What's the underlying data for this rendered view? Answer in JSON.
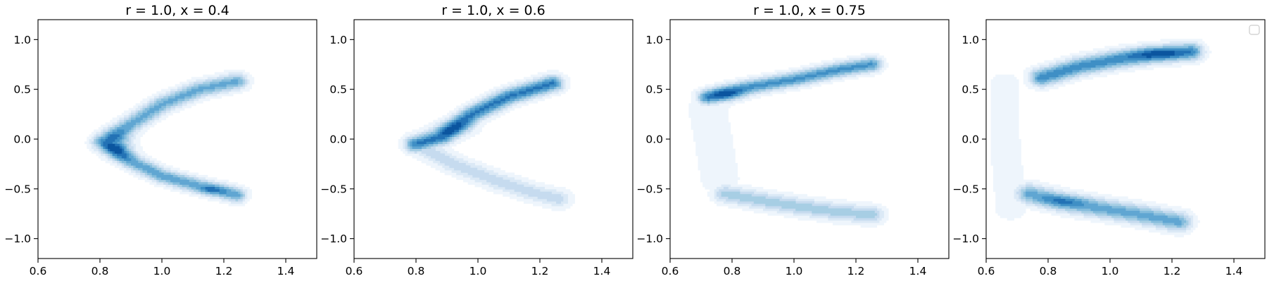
{
  "chart_data": [
    {
      "type": "contour",
      "title": "r = 1.0, x = 0.4",
      "xlim": [
        0.6,
        1.5
      ],
      "ylim": [
        -1.2,
        1.2
      ],
      "x_ticks": [
        "0.6",
        "0.8",
        "1.0",
        "1.2",
        "1.4"
      ],
      "y_ticks": [
        "1.0",
        "0.5",
        "0.0",
        "−0.5",
        "−1.0"
      ],
      "colormap": "Blues",
      "legend": false,
      "arms": [
        {
          "path": [
            [
              0.81,
              -0.03
            ],
            [
              0.9,
              0.15
            ],
            [
              1.0,
              0.35
            ],
            [
              1.12,
              0.5
            ],
            [
              1.24,
              0.58
            ]
          ],
          "sy": 0.055,
          "w": 0.85
        },
        {
          "path": [
            [
              0.81,
              -0.03
            ],
            [
              0.9,
              -0.22
            ],
            [
              1.0,
              -0.37
            ],
            [
              1.12,
              -0.47
            ],
            [
              1.24,
              -0.56
            ]
          ],
          "sy": 0.05,
          "w": 0.9
        }
      ],
      "peaks": [
        {
          "x": 0.86,
          "y": -0.06,
          "sx": 0.035,
          "sy": 0.09,
          "w": 0.6
        },
        {
          "x": 1.16,
          "y": -0.51,
          "sx": 0.03,
          "sy": 0.03,
          "w": 0.3
        }
      ]
    },
    {
      "type": "contour",
      "title": "r = 1.0, x = 0.6",
      "xlim": [
        0.6,
        1.5
      ],
      "ylim": [
        -1.2,
        1.2
      ],
      "x_ticks": [
        "0.6",
        "0.8",
        "1.0",
        "1.2",
        "1.4"
      ],
      "y_ticks": [
        "1.0",
        "0.5",
        "0.0",
        "−0.5",
        "−1.0"
      ],
      "colormap": "Blues",
      "legend": false,
      "arms": [
        {
          "path": [
            [
              0.8,
              -0.05
            ],
            [
              0.88,
              0.02
            ],
            [
              0.98,
              0.25
            ],
            [
              1.1,
              0.43
            ],
            [
              1.24,
              0.56
            ]
          ],
          "sy": 0.055,
          "w": 1.0
        },
        {
          "path": [
            [
              0.8,
              -0.05
            ],
            [
              0.92,
              -0.25
            ],
            [
              1.06,
              -0.42
            ],
            [
              1.18,
              -0.54
            ],
            [
              1.26,
              -0.6
            ]
          ],
          "sy": 0.06,
          "w": 0.4
        }
      ],
      "peaks": [
        {
          "x": 0.92,
          "y": 0.1,
          "sx": 0.05,
          "sy": 0.06,
          "w": 0.25
        }
      ]
    },
    {
      "type": "contour",
      "title": "r = 1.0, x = 0.75",
      "xlim": [
        0.6,
        1.5
      ],
      "ylim": [
        -1.2,
        1.2
      ],
      "x_ticks": [
        "0.6",
        "0.8",
        "1.0",
        "1.2",
        "1.4"
      ],
      "y_ticks": [
        "1.0",
        "0.5",
        "0.0",
        "−0.5",
        "−1.0"
      ],
      "colormap": "Blues",
      "legend": false,
      "arms": [
        {
          "path": [
            [
              0.72,
              0.42
            ],
            [
              0.85,
              0.52
            ],
            [
              1.0,
              0.6
            ],
            [
              1.15,
              0.7
            ],
            [
              1.25,
              0.75
            ]
          ],
          "sy": 0.05,
          "w": 0.9
        },
        {
          "path": [
            [
              0.78,
              -0.55
            ],
            [
              0.9,
              -0.62
            ],
            [
              1.02,
              -0.68
            ],
            [
              1.14,
              -0.73
            ],
            [
              1.25,
              -0.76
            ]
          ],
          "sy": 0.06,
          "w": 0.55
        },
        {
          "path": [
            [
              0.72,
              0.3
            ],
            [
              0.74,
              0.0
            ],
            [
              0.76,
              -0.4
            ]
          ],
          "sy": 0.12,
          "w": 0.12
        }
      ],
      "peaks": [
        {
          "x": 0.78,
          "y": 0.45,
          "sx": 0.04,
          "sy": 0.05,
          "w": 0.4
        }
      ]
    },
    {
      "type": "contour",
      "title": "",
      "xlim": [
        0.6,
        1.5
      ],
      "ylim": [
        -1.2,
        1.2
      ],
      "x_ticks": [
        "0.6",
        "0.8",
        "1.0",
        "1.2",
        "1.4"
      ],
      "y_ticks": [
        "1.0",
        "0.5",
        "0.0",
        "−0.5",
        "−1.0"
      ],
      "colormap": "Blues",
      "legend": true,
      "legend_position": "top-right",
      "arms": [
        {
          "path": [
            [
              0.78,
              0.62
            ],
            [
              0.9,
              0.73
            ],
            [
              1.02,
              0.8
            ],
            [
              1.14,
              0.85
            ],
            [
              1.26,
              0.88
            ]
          ],
          "sy": 0.06,
          "w": 0.9
        },
        {
          "path": [
            [
              0.74,
              -0.55
            ],
            [
              0.86,
              -0.64
            ],
            [
              0.98,
              -0.7
            ],
            [
              1.1,
              -0.76
            ],
            [
              1.22,
              -0.83
            ]
          ],
          "sy": 0.065,
          "w": 0.75
        },
        {
          "path": [
            [
              0.66,
              0.55
            ],
            [
              0.66,
              0.0
            ],
            [
              0.68,
              -0.7
            ]
          ],
          "sy": 0.14,
          "w": 0.08
        }
      ],
      "peaks": [
        {
          "x": 1.15,
          "y": 0.86,
          "sx": 0.06,
          "sy": 0.04,
          "w": 0.3
        },
        {
          "x": 0.85,
          "y": -0.62,
          "sx": 0.05,
          "sy": 0.04,
          "w": 0.25
        }
      ]
    }
  ]
}
